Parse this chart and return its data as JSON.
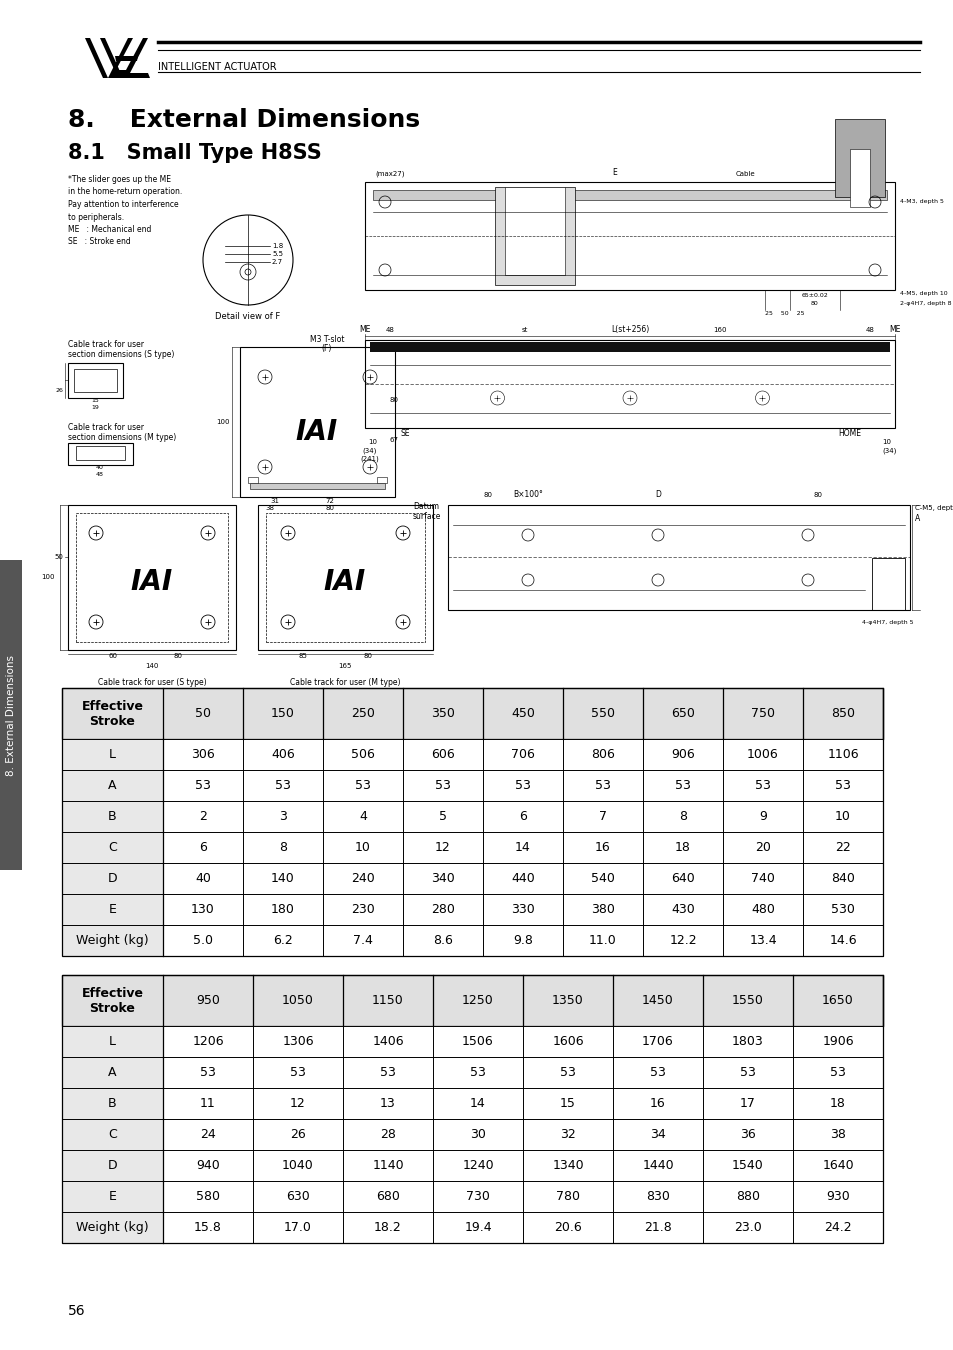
{
  "title_section": "8.    External Dimensions",
  "subtitle_section": "8.1   Small Type H8SS",
  "bg_color": "#ffffff",
  "text_color": "#000000",
  "page_number": "56",
  "sidebar_text": "8. External Dimensions",
  "table1": {
    "header_col": "Effective\nStroke",
    "columns": [
      "50",
      "150",
      "250",
      "350",
      "450",
      "550",
      "650",
      "750",
      "850"
    ],
    "rows": [
      {
        "label": "L",
        "values": [
          "306",
          "406",
          "506",
          "606",
          "706",
          "806",
          "906",
          "1006",
          "1106"
        ]
      },
      {
        "label": "A",
        "values": [
          "53",
          "53",
          "53",
          "53",
          "53",
          "53",
          "53",
          "53",
          "53"
        ]
      },
      {
        "label": "B",
        "values": [
          "2",
          "3",
          "4",
          "5",
          "6",
          "7",
          "8",
          "9",
          "10"
        ]
      },
      {
        "label": "C",
        "values": [
          "6",
          "8",
          "10",
          "12",
          "14",
          "16",
          "18",
          "20",
          "22"
        ]
      },
      {
        "label": "D",
        "values": [
          "40",
          "140",
          "240",
          "340",
          "440",
          "540",
          "640",
          "740",
          "840"
        ]
      },
      {
        "label": "E",
        "values": [
          "130",
          "180",
          "230",
          "280",
          "330",
          "380",
          "430",
          "480",
          "530"
        ]
      },
      {
        "label": "Weight (kg)",
        "values": [
          "5.0",
          "6.2",
          "7.4",
          "8.6",
          "9.8",
          "11.0",
          "12.2",
          "13.4",
          "14.6"
        ]
      }
    ]
  },
  "table2": {
    "header_col": "Effective\nStroke",
    "columns": [
      "950",
      "1050",
      "1150",
      "1250",
      "1350",
      "1450",
      "1550",
      "1650"
    ],
    "rows": [
      {
        "label": "L",
        "values": [
          "1206",
          "1306",
          "1406",
          "1506",
          "1606",
          "1706",
          "1803",
          "1906"
        ]
      },
      {
        "label": "A",
        "values": [
          "53",
          "53",
          "53",
          "53",
          "53",
          "53",
          "53",
          "53"
        ]
      },
      {
        "label": "B",
        "values": [
          "11",
          "12",
          "13",
          "14",
          "15",
          "16",
          "17",
          "18"
        ]
      },
      {
        "label": "C",
        "values": [
          "24",
          "26",
          "28",
          "30",
          "32",
          "34",
          "36",
          "38"
        ]
      },
      {
        "label": "D",
        "values": [
          "940",
          "1040",
          "1140",
          "1240",
          "1340",
          "1440",
          "1540",
          "1640"
        ]
      },
      {
        "label": "E",
        "values": [
          "580",
          "630",
          "680",
          "730",
          "780",
          "830",
          "880",
          "930"
        ]
      },
      {
        "label": "Weight (kg)",
        "values": [
          "15.8",
          "17.0",
          "18.2",
          "19.4",
          "20.6",
          "21.8",
          "23.0",
          "24.2"
        ]
      }
    ]
  },
  "logo_text": "INTELLIGENT ACTUATOR",
  "sidebar_color": "#555555"
}
